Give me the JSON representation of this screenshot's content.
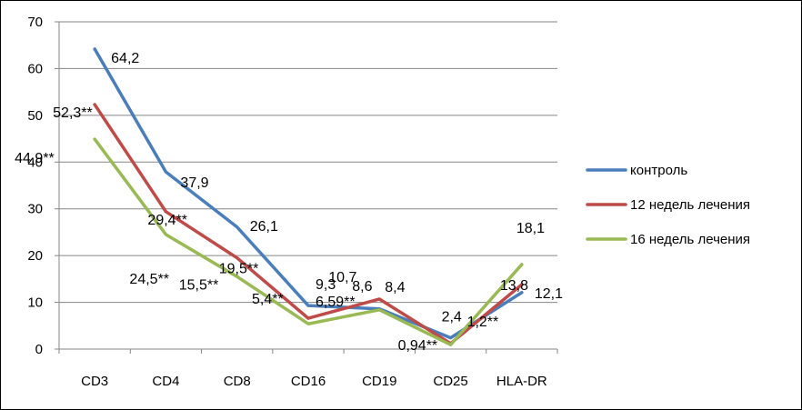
{
  "chart_data": {
    "type": "line",
    "categories": [
      "CD3",
      "CD4",
      "CD8",
      "CD16",
      "CD19",
      "CD25",
      "HLA-DR"
    ],
    "ylim": [
      0,
      70
    ],
    "yticks": [
      "0",
      "10",
      "20",
      "30",
      "40",
      "50",
      "60",
      "70"
    ],
    "grid": "horizontal",
    "legend_position": "right",
    "series": [
      {
        "name": "контроль",
        "color": "#4A7EBB",
        "values": [
          64.2,
          37.9,
          26.1,
          9.3,
          8.6,
          2.4,
          12.1
        ],
        "labels": [
          "64,2",
          "37,9",
          "26,1",
          "9,3",
          "8,6",
          "2,4",
          "12,1"
        ]
      },
      {
        "name": "12 недель лечения",
        "color": "#BE4B48",
        "values": [
          52.3,
          29.4,
          19.5,
          6.59,
          10.7,
          1.2,
          13.8
        ],
        "labels": [
          "52,3**",
          "29,4**",
          "19,5**",
          "6,59**",
          "10,7",
          "1,2**",
          "13,8"
        ]
      },
      {
        "name": "16 недель лечения",
        "color": "#98B954",
        "values": [
          44.9,
          24.5,
          15.5,
          5.4,
          8.4,
          0.94,
          18.1
        ],
        "labels": [
          "44,9**",
          "24,5**",
          "15,5**",
          "5,4**",
          "8,4",
          "0,94**",
          "18,1"
        ]
      }
    ]
  }
}
